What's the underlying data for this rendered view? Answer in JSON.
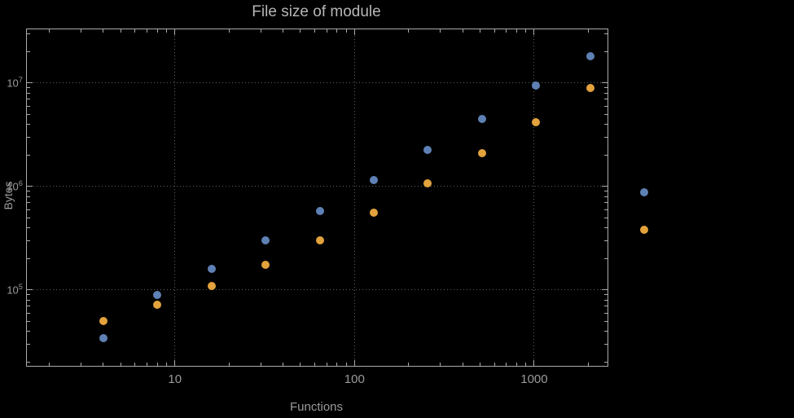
{
  "figure": {
    "background": "#000000"
  },
  "chart_data": {
    "type": "scatter",
    "title": "File size of module",
    "xlabel": "Functions",
    "ylabel": "Bytes",
    "x_scale": "log",
    "y_scale": "log",
    "xlim": [
      1.5,
      2560
    ],
    "ylim": [
      18500,
      33000000
    ],
    "grid": "dotted lines at major ticks",
    "legend": "none",
    "x": [
      4,
      8,
      16,
      32,
      64,
      128,
      256,
      512,
      1024,
      2048,
      4096
    ],
    "series": [
      {
        "name": "blue",
        "color": "#5E81B5",
        "values": [
          34000,
          90000,
          160000,
          300000,
          580000,
          1150000,
          2250000,
          4500000,
          9500000,
          18000000,
          880000
        ]
      },
      {
        "name": "orange",
        "color": "#E3A23C",
        "values": [
          50000,
          72000,
          110000,
          175000,
          300000,
          560000,
          1080000,
          2100000,
          4200000,
          9000000,
          380000
        ]
      }
    ],
    "x_ticks": [
      10,
      100,
      1000
    ],
    "x_tick_labels": [
      "10",
      "100",
      "1000"
    ],
    "y_ticks": [
      100000,
      1000000,
      10000000
    ],
    "y_tick_labels": [
      {
        "base": "10",
        "exp": "5"
      },
      {
        "base": "10",
        "exp": "6"
      },
      {
        "base": "10",
        "exp": "7"
      }
    ]
  },
  "style": {
    "background": "#000000",
    "frame_color": "#ababab",
    "grid_color": "#606060",
    "title_color": "#b6b6b6",
    "tick_label_color": "#9a9a9a",
    "axis_label_color": "#9a9a9a"
  }
}
